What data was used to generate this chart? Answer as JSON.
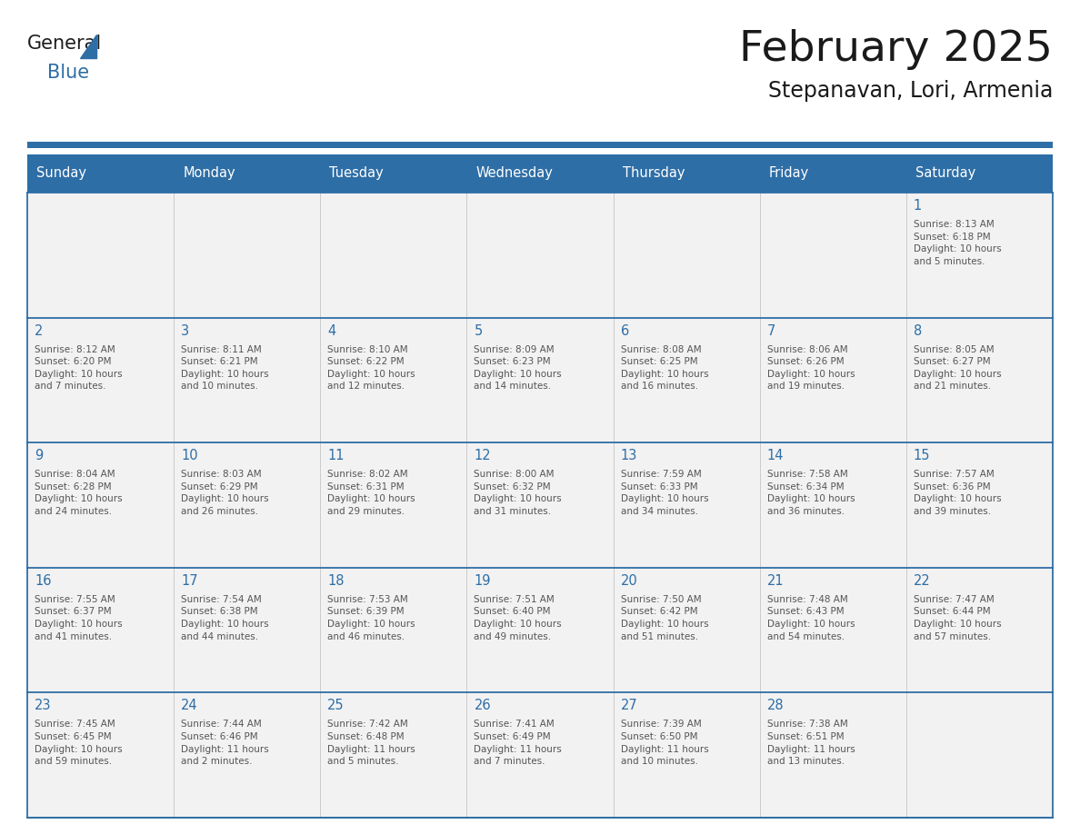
{
  "title": "February 2025",
  "subtitle": "Stepanavan, Lori, Armenia",
  "header_bg_color": "#2E6EA6",
  "header_text_color": "#FFFFFF",
  "cell_bg_color": "#F2F2F2",
  "grid_line_color": "#2E6EA6",
  "day_number_color": "#2E6EA6",
  "info_text_color": "#555555",
  "title_color": "#1a1a1a",
  "days_of_week": [
    "Sunday",
    "Monday",
    "Tuesday",
    "Wednesday",
    "Thursday",
    "Friday",
    "Saturday"
  ],
  "calendar_data": [
    [
      {
        "day": "",
        "info": ""
      },
      {
        "day": "",
        "info": ""
      },
      {
        "day": "",
        "info": ""
      },
      {
        "day": "",
        "info": ""
      },
      {
        "day": "",
        "info": ""
      },
      {
        "day": "",
        "info": ""
      },
      {
        "day": "1",
        "info": "Sunrise: 8:13 AM\nSunset: 6:18 PM\nDaylight: 10 hours\nand 5 minutes."
      }
    ],
    [
      {
        "day": "2",
        "info": "Sunrise: 8:12 AM\nSunset: 6:20 PM\nDaylight: 10 hours\nand 7 minutes."
      },
      {
        "day": "3",
        "info": "Sunrise: 8:11 AM\nSunset: 6:21 PM\nDaylight: 10 hours\nand 10 minutes."
      },
      {
        "day": "4",
        "info": "Sunrise: 8:10 AM\nSunset: 6:22 PM\nDaylight: 10 hours\nand 12 minutes."
      },
      {
        "day": "5",
        "info": "Sunrise: 8:09 AM\nSunset: 6:23 PM\nDaylight: 10 hours\nand 14 minutes."
      },
      {
        "day": "6",
        "info": "Sunrise: 8:08 AM\nSunset: 6:25 PM\nDaylight: 10 hours\nand 16 minutes."
      },
      {
        "day": "7",
        "info": "Sunrise: 8:06 AM\nSunset: 6:26 PM\nDaylight: 10 hours\nand 19 minutes."
      },
      {
        "day": "8",
        "info": "Sunrise: 8:05 AM\nSunset: 6:27 PM\nDaylight: 10 hours\nand 21 minutes."
      }
    ],
    [
      {
        "day": "9",
        "info": "Sunrise: 8:04 AM\nSunset: 6:28 PM\nDaylight: 10 hours\nand 24 minutes."
      },
      {
        "day": "10",
        "info": "Sunrise: 8:03 AM\nSunset: 6:29 PM\nDaylight: 10 hours\nand 26 minutes."
      },
      {
        "day": "11",
        "info": "Sunrise: 8:02 AM\nSunset: 6:31 PM\nDaylight: 10 hours\nand 29 minutes."
      },
      {
        "day": "12",
        "info": "Sunrise: 8:00 AM\nSunset: 6:32 PM\nDaylight: 10 hours\nand 31 minutes."
      },
      {
        "day": "13",
        "info": "Sunrise: 7:59 AM\nSunset: 6:33 PM\nDaylight: 10 hours\nand 34 minutes."
      },
      {
        "day": "14",
        "info": "Sunrise: 7:58 AM\nSunset: 6:34 PM\nDaylight: 10 hours\nand 36 minutes."
      },
      {
        "day": "15",
        "info": "Sunrise: 7:57 AM\nSunset: 6:36 PM\nDaylight: 10 hours\nand 39 minutes."
      }
    ],
    [
      {
        "day": "16",
        "info": "Sunrise: 7:55 AM\nSunset: 6:37 PM\nDaylight: 10 hours\nand 41 minutes."
      },
      {
        "day": "17",
        "info": "Sunrise: 7:54 AM\nSunset: 6:38 PM\nDaylight: 10 hours\nand 44 minutes."
      },
      {
        "day": "18",
        "info": "Sunrise: 7:53 AM\nSunset: 6:39 PM\nDaylight: 10 hours\nand 46 minutes."
      },
      {
        "day": "19",
        "info": "Sunrise: 7:51 AM\nSunset: 6:40 PM\nDaylight: 10 hours\nand 49 minutes."
      },
      {
        "day": "20",
        "info": "Sunrise: 7:50 AM\nSunset: 6:42 PM\nDaylight: 10 hours\nand 51 minutes."
      },
      {
        "day": "21",
        "info": "Sunrise: 7:48 AM\nSunset: 6:43 PM\nDaylight: 10 hours\nand 54 minutes."
      },
      {
        "day": "22",
        "info": "Sunrise: 7:47 AM\nSunset: 6:44 PM\nDaylight: 10 hours\nand 57 minutes."
      }
    ],
    [
      {
        "day": "23",
        "info": "Sunrise: 7:45 AM\nSunset: 6:45 PM\nDaylight: 10 hours\nand 59 minutes."
      },
      {
        "day": "24",
        "info": "Sunrise: 7:44 AM\nSunset: 6:46 PM\nDaylight: 11 hours\nand 2 minutes."
      },
      {
        "day": "25",
        "info": "Sunrise: 7:42 AM\nSunset: 6:48 PM\nDaylight: 11 hours\nand 5 minutes."
      },
      {
        "day": "26",
        "info": "Sunrise: 7:41 AM\nSunset: 6:49 PM\nDaylight: 11 hours\nand 7 minutes."
      },
      {
        "day": "27",
        "info": "Sunrise: 7:39 AM\nSunset: 6:50 PM\nDaylight: 11 hours\nand 10 minutes."
      },
      {
        "day": "28",
        "info": "Sunrise: 7:38 AM\nSunset: 6:51 PM\nDaylight: 11 hours\nand 13 minutes."
      },
      {
        "day": "",
        "info": ""
      }
    ]
  ]
}
